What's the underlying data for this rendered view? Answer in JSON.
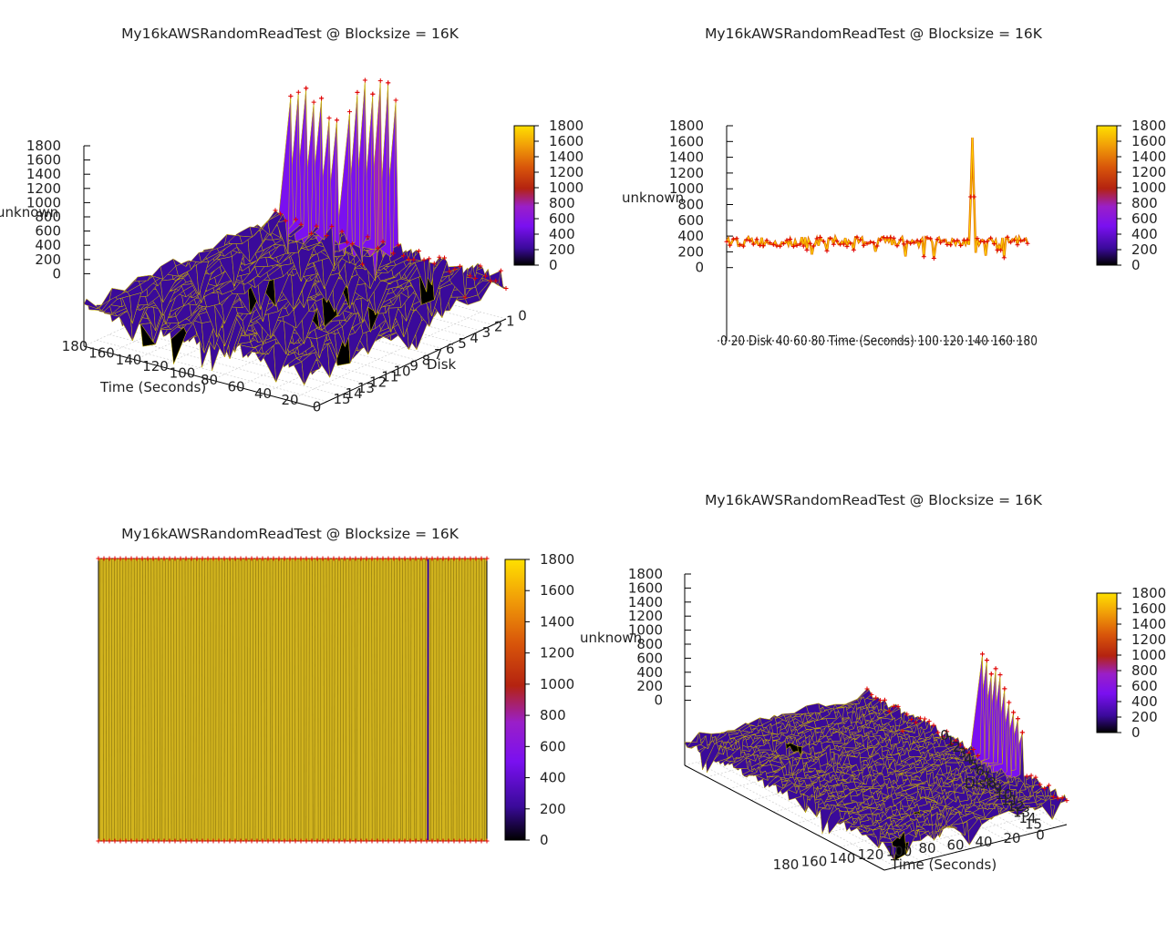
{
  "palette": {
    "grad": [
      "#000000",
      "#3a0a9a",
      "#7a10f0",
      "#9a1fc8",
      "#b42310",
      "#d8550a",
      "#f09a08",
      "#ffe000"
    ],
    "mesh": "#c8b400",
    "point": "#e00000",
    "fill_yellow": "#d2b41e"
  },
  "chart_data": [
    {
      "type": "surface3d",
      "title": "My16kAWSRandomReadTest @ Blocksize = 16K",
      "zlabel": "unknown",
      "xlabel": "Time (Seconds)",
      "ylabel": "Disk",
      "z_ticks": [
        "1800",
        "1600",
        "1400",
        "1200",
        "1000",
        "800",
        "600",
        "400",
        "200",
        "0"
      ],
      "time_ticks": [
        "180",
        "160",
        "140",
        "120",
        "100",
        "80",
        "60",
        "40",
        "20",
        "0"
      ],
      "disk_ticks": [
        "15",
        "14",
        "13",
        "12",
        "11",
        "10",
        "9",
        "8",
        "7",
        "6",
        "5",
        "4",
        "3",
        "2",
        "1",
        "0"
      ],
      "colorbar_ticks": [
        "1800",
        "1600",
        "1400",
        "1200",
        "1000",
        "800",
        "600",
        "400",
        "200",
        "0"
      ],
      "typical_value": 330,
      "spike_values": [
        1400,
        1450,
        1500,
        1400,
        1450,
        1300,
        1300,
        1400,
        1580,
        1700,
        1600,
        1730,
        1730,
        1600
      ]
    },
    {
      "type": "line",
      "title": "My16kAWSRandomReadTest @ Blocksize = 16K",
      "ylabel": "unknown",
      "xlabel": "Time (Seconds)",
      "y_ticks": [
        "1800",
        "1600",
        "1400",
        "1200",
        "1000",
        "800",
        "600",
        "400",
        "200",
        "0"
      ],
      "overlap_text": "0 20 Disk 40 60 80 Time (Seconds) 100 120 140 160 180",
      "colorbar_ticks": [
        "1800",
        "1600",
        "1400",
        "1200",
        "1000",
        "800",
        "600",
        "400",
        "200",
        "0"
      ],
      "typical_value": 330,
      "spike": {
        "time": 147,
        "value": 1650
      }
    },
    {
      "type": "heatmap",
      "title": "My16kAWSRandomReadTest @ Blocksize = 16K",
      "colorbar_ticks": [
        "1800",
        "1600",
        "1400",
        "1200",
        "1000",
        "800",
        "600",
        "400",
        "200",
        "0"
      ]
    },
    {
      "type": "surface3d",
      "title": "My16kAWSRandomReadTest @ Blocksize = 16K",
      "zlabel": "unknown",
      "xlabel": "Time (Seconds)",
      "ylabel": "Disk",
      "z_ticks": [
        "1800",
        "1600",
        "1400",
        "1200",
        "1000",
        "800",
        "600",
        "400",
        "200",
        "0"
      ],
      "time_ticks": [
        "180",
        "160",
        "140",
        "120",
        "100",
        "80",
        "60",
        "40",
        "20",
        "0"
      ],
      "disk_ticks": [
        "0",
        "1",
        "2",
        "3",
        "4",
        "5",
        "6",
        "7",
        "8",
        "9",
        "10",
        "11",
        "12",
        "13",
        "14",
        "15"
      ],
      "colorbar_ticks": [
        "1800",
        "1600",
        "1400",
        "1200",
        "1000",
        "800",
        "600",
        "400",
        "200",
        "0"
      ],
      "typical_value": 330,
      "spike_values": [
        1650,
        1600,
        1450,
        1550,
        1500,
        1350,
        1200,
        1100,
        1050,
        900
      ]
    }
  ]
}
